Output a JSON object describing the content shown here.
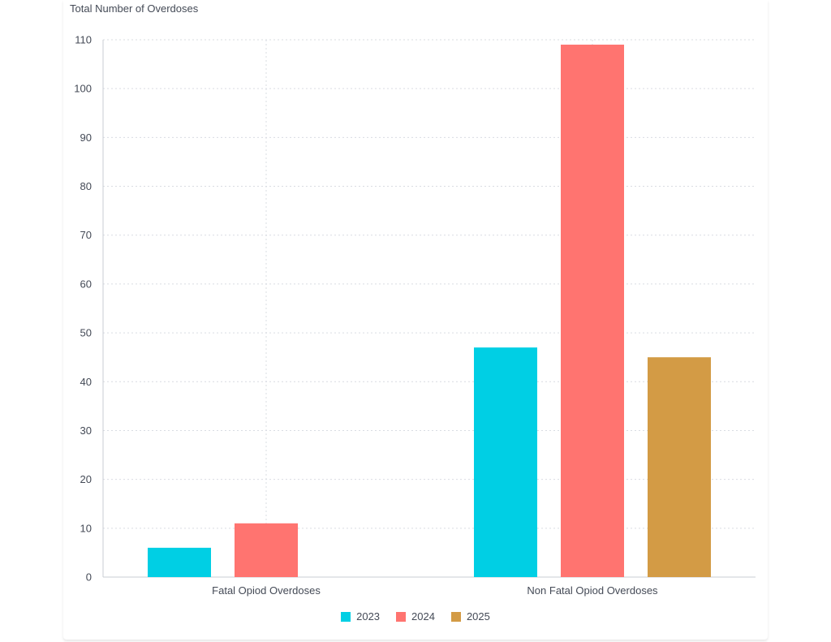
{
  "chart_data": {
    "type": "bar",
    "ylabel": "Total Number of Overdoses",
    "xlabel": "",
    "categories": [
      "Fatal Opiod Overdoses",
      "Non Fatal Opiod Overdoses"
    ],
    "series": [
      {
        "name": "2023",
        "color": "#00cfe4",
        "values": [
          6,
          47
        ]
      },
      {
        "name": "2024",
        "color": "#ff7470",
        "values": [
          11,
          109
        ]
      },
      {
        "name": "2025",
        "color": "#d39b45",
        "values": [
          0,
          45
        ]
      }
    ],
    "ylim": [
      0,
      110
    ],
    "yticks": [
      0,
      10,
      20,
      30,
      40,
      50,
      60,
      70,
      80,
      90,
      100,
      110
    ],
    "grid": true,
    "legend_position": "bottom"
  }
}
